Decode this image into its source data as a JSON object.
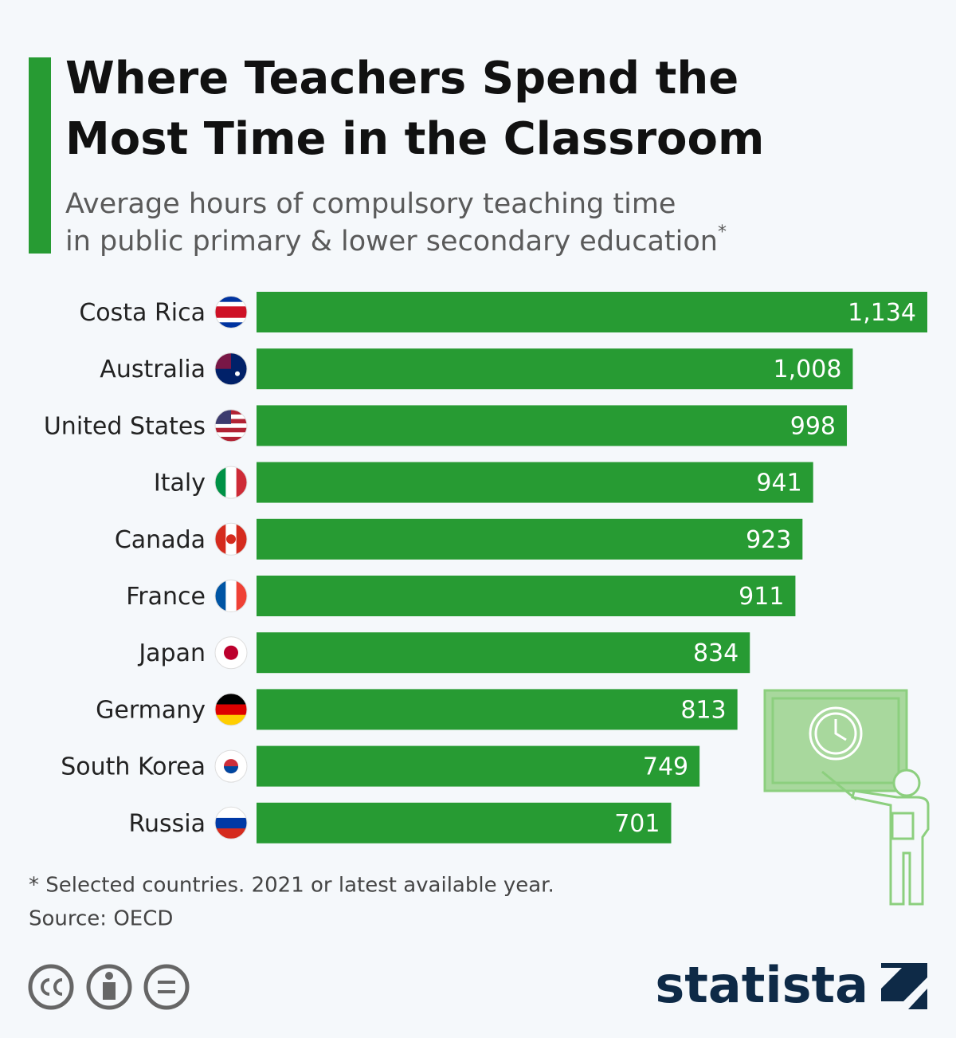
{
  "chart_data": {
    "type": "bar",
    "orientation": "horizontal",
    "title": [
      "Where Teachers Spend the",
      "Most Time in the Classroom"
    ],
    "subtitle": [
      "Average hours of compulsory teaching time",
      "in public primary & lower secondary education"
    ],
    "subtitle_marker": "*",
    "categories": [
      "Costa Rica",
      "Australia",
      "United States",
      "Italy",
      "Canada",
      "France",
      "Japan",
      "Germany",
      "South Korea",
      "Russia"
    ],
    "values": [
      1134,
      1008,
      998,
      941,
      923,
      911,
      834,
      813,
      749,
      701
    ],
    "value_labels": [
      "1,134",
      "1,008",
      "998",
      "941",
      "923",
      "911",
      "834",
      "813",
      "749",
      "701"
    ],
    "color": "#279b33",
    "note": "* Selected countries. 2021 or latest available year.",
    "source": "Source: OECD",
    "brand": "statista"
  }
}
